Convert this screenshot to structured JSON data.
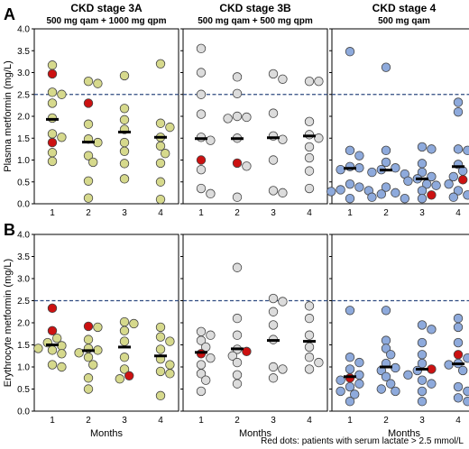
{
  "figure": {
    "row_labels": [
      "A",
      "B"
    ],
    "footnote": "Red dots: patients with serum lactate > 2.5 mmol/L",
    "colors": {
      "3A": "#d6d98c",
      "3B": "#dcdcdc",
      "4": "#8eaadc",
      "highlight": "#cc1111",
      "threshold": "#2e4a80"
    }
  },
  "chart_data": [
    {
      "type": "scatter",
      "row": "A",
      "col": 0,
      "group": "3A",
      "title": "CKD stage 3A",
      "subtitle": "500 mg qam + 1000 mg qpm",
      "ylabel": "Plasma metformin (mg/L)",
      "xlabel": "",
      "ylim": [
        0,
        4.0
      ],
      "yticks": [
        0,
        0.5,
        1.0,
        1.5,
        2.0,
        2.5,
        3.0,
        3.5,
        4.0
      ],
      "categories": [
        "1",
        "2",
        "3",
        "4"
      ],
      "threshold": 2.5,
      "medians": [
        1.93,
        1.41,
        1.64,
        1.52
      ],
      "points": [
        {
          "x": 1,
          "y": 3.17
        },
        {
          "x": 1,
          "y": 2.97,
          "red": true
        },
        {
          "x": 1,
          "y": 2.55
        },
        {
          "x": 1,
          "y": 2.5
        },
        {
          "x": 1,
          "y": 2.3
        },
        {
          "x": 1,
          "y": 1.96
        },
        {
          "x": 1,
          "y": 1.6
        },
        {
          "x": 1,
          "y": 1.4,
          "red": true
        },
        {
          "x": 1,
          "y": 1.17
        },
        {
          "x": 1,
          "y": 0.97
        },
        {
          "x": 1,
          "y": 1.52
        },
        {
          "x": 2,
          "y": 2.8
        },
        {
          "x": 2,
          "y": 2.75
        },
        {
          "x": 2,
          "y": 2.3,
          "red": true
        },
        {
          "x": 2,
          "y": 1.82
        },
        {
          "x": 2,
          "y": 1.48
        },
        {
          "x": 2,
          "y": 1.4
        },
        {
          "x": 2,
          "y": 1.1
        },
        {
          "x": 2,
          "y": 0.95
        },
        {
          "x": 2,
          "y": 0.52
        },
        {
          "x": 2,
          "y": 0.13
        },
        {
          "x": 3,
          "y": 2.93
        },
        {
          "x": 3,
          "y": 2.18
        },
        {
          "x": 3,
          "y": 1.92
        },
        {
          "x": 3,
          "y": 1.7
        },
        {
          "x": 3,
          "y": 1.4
        },
        {
          "x": 3,
          "y": 1.2
        },
        {
          "x": 3,
          "y": 0.92
        },
        {
          "x": 3,
          "y": 0.57
        },
        {
          "x": 4,
          "y": 3.2
        },
        {
          "x": 4,
          "y": 1.84
        },
        {
          "x": 4,
          "y": 1.75
        },
        {
          "x": 4,
          "y": 1.52
        },
        {
          "x": 4,
          "y": 1.32
        },
        {
          "x": 4,
          "y": 1.15
        },
        {
          "x": 4,
          "y": 0.93
        },
        {
          "x": 4,
          "y": 0.5
        },
        {
          "x": 4,
          "y": 0.1
        }
      ]
    },
    {
      "type": "scatter",
      "row": "A",
      "col": 1,
      "group": "3B",
      "title": "CKD stage 3B",
      "subtitle": "500 mg qam + 500 mg qpm",
      "ylabel": "",
      "xlabel": "",
      "ylim": [
        0,
        4.0
      ],
      "yticks": [
        0,
        0.5,
        1.0,
        1.5,
        2.0,
        2.5,
        3.0,
        3.5,
        4.0
      ],
      "categories": [
        "1",
        "2",
        "3",
        "4"
      ],
      "threshold": 2.5,
      "medians": [
        1.49,
        1.49,
        1.51,
        1.55
      ],
      "points": [
        {
          "x": 1,
          "y": 3.55
        },
        {
          "x": 1,
          "y": 3.0
        },
        {
          "x": 1,
          "y": 2.5
        },
        {
          "x": 1,
          "y": 2.05
        },
        {
          "x": 1,
          "y": 1.52
        },
        {
          "x": 1,
          "y": 1.45
        },
        {
          "x": 1,
          "y": 1.0,
          "red": true
        },
        {
          "x": 1,
          "y": 0.78
        },
        {
          "x": 1,
          "y": 0.35
        },
        {
          "x": 1,
          "y": 0.23
        },
        {
          "x": 2,
          "y": 2.9
        },
        {
          "x": 2,
          "y": 2.52
        },
        {
          "x": 2,
          "y": 2.0
        },
        {
          "x": 2,
          "y": 1.98
        },
        {
          "x": 2,
          "y": 1.95
        },
        {
          "x": 2,
          "y": 1.5
        },
        {
          "x": 2,
          "y": 0.93,
          "red": true
        },
        {
          "x": 2,
          "y": 0.86
        },
        {
          "x": 2,
          "y": 0.15
        },
        {
          "x": 3,
          "y": 2.97
        },
        {
          "x": 3,
          "y": 2.85
        },
        {
          "x": 3,
          "y": 2.07
        },
        {
          "x": 3,
          "y": 1.55
        },
        {
          "x": 3,
          "y": 1.47
        },
        {
          "x": 3,
          "y": 1.0
        },
        {
          "x": 3,
          "y": 0.3
        },
        {
          "x": 3,
          "y": 0.25
        },
        {
          "x": 4,
          "y": 2.8
        },
        {
          "x": 4,
          "y": 2.8
        },
        {
          "x": 4,
          "y": 1.88
        },
        {
          "x": 4,
          "y": 1.58
        },
        {
          "x": 4,
          "y": 1.5
        },
        {
          "x": 4,
          "y": 1.3
        },
        {
          "x": 4,
          "y": 1.05
        },
        {
          "x": 4,
          "y": 0.75
        },
        {
          "x": 4,
          "y": 0.35
        }
      ]
    },
    {
      "type": "scatter",
      "row": "A",
      "col": 2,
      "group": "4",
      "title": "CKD stage 4",
      "subtitle": "500 mg qam",
      "ylabel": "",
      "xlabel": "",
      "ylim": [
        0,
        4.0
      ],
      "yticks": [
        0,
        0.5,
        1.0,
        1.5,
        2.0,
        2.5,
        3.0,
        3.5,
        4.0
      ],
      "categories": [
        "1",
        "2",
        "3",
        "4"
      ],
      "threshold": 2.5,
      "medians": [
        0.81,
        0.77,
        0.57,
        0.85
      ],
      "points": [
        {
          "x": 1,
          "y": 3.48
        },
        {
          "x": 1,
          "y": 1.22
        },
        {
          "x": 1,
          "y": 1.1
        },
        {
          "x": 1,
          "y": 0.85
        },
        {
          "x": 1,
          "y": 0.82
        },
        {
          "x": 1,
          "y": 0.78
        },
        {
          "x": 1,
          "y": 0.45
        },
        {
          "x": 1,
          "y": 0.38
        },
        {
          "x": 1,
          "y": 0.32
        },
        {
          "x": 1,
          "y": 0.3
        },
        {
          "x": 1,
          "y": 0.28
        },
        {
          "x": 1,
          "y": 0.12
        },
        {
          "x": 2,
          "y": 3.12
        },
        {
          "x": 2,
          "y": 1.22
        },
        {
          "x": 2,
          "y": 0.95
        },
        {
          "x": 2,
          "y": 0.82
        },
        {
          "x": 2,
          "y": 0.78
        },
        {
          "x": 2,
          "y": 0.72
        },
        {
          "x": 2,
          "y": 0.68
        },
        {
          "x": 2,
          "y": 0.38
        },
        {
          "x": 2,
          "y": 0.25
        },
        {
          "x": 2,
          "y": 0.22
        },
        {
          "x": 2,
          "y": 0.15
        },
        {
          "x": 2,
          "y": 0.12
        },
        {
          "x": 3,
          "y": 1.3
        },
        {
          "x": 3,
          "y": 1.25
        },
        {
          "x": 3,
          "y": 0.92
        },
        {
          "x": 3,
          "y": 0.72
        },
        {
          "x": 3,
          "y": 0.62
        },
        {
          "x": 3,
          "y": 0.57
        },
        {
          "x": 3,
          "y": 0.52
        },
        {
          "x": 3,
          "y": 0.45
        },
        {
          "x": 3,
          "y": 0.42
        },
        {
          "x": 3,
          "y": 0.3
        },
        {
          "x": 3,
          "y": 0.2,
          "red": true
        },
        {
          "x": 3,
          "y": 0.12
        },
        {
          "x": 4,
          "y": 2.32
        },
        {
          "x": 4,
          "y": 2.1
        },
        {
          "x": 4,
          "y": 1.25
        },
        {
          "x": 4,
          "y": 1.22
        },
        {
          "x": 4,
          "y": 0.9
        },
        {
          "x": 4,
          "y": 0.75
        },
        {
          "x": 4,
          "y": 0.62
        },
        {
          "x": 4,
          "y": 0.55,
          "red": true
        },
        {
          "x": 4,
          "y": 0.45
        },
        {
          "x": 4,
          "y": 0.3
        },
        {
          "x": 4,
          "y": 0.2
        },
        {
          "x": 4,
          "y": 0.15
        }
      ]
    },
    {
      "type": "scatter",
      "row": "B",
      "col": 0,
      "group": "3A",
      "title": "",
      "subtitle": "",
      "ylabel": "Erythrocyte metformin (mg/L)",
      "xlabel": "Months",
      "ylim": [
        0,
        4.0
      ],
      "yticks": [
        0,
        0.5,
        1.0,
        1.5,
        2.0,
        2.5,
        3.0,
        3.5,
        4.0
      ],
      "categories": [
        "1",
        "2",
        "3",
        "4"
      ],
      "threshold": 2.5,
      "medians": [
        1.5,
        1.37,
        1.45,
        1.25
      ],
      "points": [
        {
          "x": 1,
          "y": 2.33,
          "red": true
        },
        {
          "x": 1,
          "y": 1.82,
          "red": true
        },
        {
          "x": 1,
          "y": 1.65
        },
        {
          "x": 1,
          "y": 1.55
        },
        {
          "x": 1,
          "y": 1.48
        },
        {
          "x": 1,
          "y": 1.42
        },
        {
          "x": 1,
          "y": 1.38
        },
        {
          "x": 1,
          "y": 1.3
        },
        {
          "x": 1,
          "y": 1.05
        },
        {
          "x": 1,
          "y": 1.0
        },
        {
          "x": 2,
          "y": 1.92,
          "red": true
        },
        {
          "x": 2,
          "y": 1.9
        },
        {
          "x": 2,
          "y": 1.62
        },
        {
          "x": 2,
          "y": 1.42
        },
        {
          "x": 2,
          "y": 1.38
        },
        {
          "x": 2,
          "y": 1.32
        },
        {
          "x": 2,
          "y": 1.22
        },
        {
          "x": 2,
          "y": 1.05
        },
        {
          "x": 2,
          "y": 0.75
        },
        {
          "x": 2,
          "y": 0.5
        },
        {
          "x": 3,
          "y": 2.02
        },
        {
          "x": 3,
          "y": 1.98
        },
        {
          "x": 3,
          "y": 1.82
        },
        {
          "x": 3,
          "y": 1.58
        },
        {
          "x": 3,
          "y": 1.22
        },
        {
          "x": 3,
          "y": 0.95
        },
        {
          "x": 3,
          "y": 0.8,
          "red": true
        },
        {
          "x": 3,
          "y": 0.73
        },
        {
          "x": 4,
          "y": 1.9
        },
        {
          "x": 4,
          "y": 1.68
        },
        {
          "x": 4,
          "y": 1.58
        },
        {
          "x": 4,
          "y": 1.4
        },
        {
          "x": 4,
          "y": 1.18
        },
        {
          "x": 4,
          "y": 1.05
        },
        {
          "x": 4,
          "y": 0.9
        },
        {
          "x": 4,
          "y": 0.85
        },
        {
          "x": 4,
          "y": 0.35
        }
      ]
    },
    {
      "type": "scatter",
      "row": "B",
      "col": 1,
      "group": "3B",
      "title": "",
      "subtitle": "",
      "ylabel": "",
      "xlabel": "Months",
      "ylim": [
        0,
        4.0
      ],
      "yticks": [
        0,
        0.5,
        1.0,
        1.5,
        2.0,
        2.5,
        3.0,
        3.5,
        4.0
      ],
      "categories": [
        "1",
        "2",
        "3",
        "4"
      ],
      "threshold": 2.5,
      "medians": [
        1.33,
        1.41,
        1.6,
        1.58
      ],
      "points": [
        {
          "x": 1,
          "y": 1.8
        },
        {
          "x": 1,
          "y": 1.72
        },
        {
          "x": 1,
          "y": 1.6
        },
        {
          "x": 1,
          "y": 1.45
        },
        {
          "x": 1,
          "y": 1.3,
          "red": true
        },
        {
          "x": 1,
          "y": 1.2
        },
        {
          "x": 1,
          "y": 1.05
        },
        {
          "x": 1,
          "y": 0.85
        },
        {
          "x": 1,
          "y": 0.7
        },
        {
          "x": 1,
          "y": 0.45
        },
        {
          "x": 2,
          "y": 3.25
        },
        {
          "x": 2,
          "y": 2.1
        },
        {
          "x": 2,
          "y": 1.72
        },
        {
          "x": 2,
          "y": 1.4
        },
        {
          "x": 2,
          "y": 1.35,
          "red": true
        },
        {
          "x": 2,
          "y": 1.25
        },
        {
          "x": 2,
          "y": 1.1
        },
        {
          "x": 2,
          "y": 0.82
        },
        {
          "x": 2,
          "y": 0.62
        },
        {
          "x": 3,
          "y": 2.55
        },
        {
          "x": 3,
          "y": 2.48
        },
        {
          "x": 3,
          "y": 2.25
        },
        {
          "x": 3,
          "y": 1.95
        },
        {
          "x": 3,
          "y": 1.62
        },
        {
          "x": 3,
          "y": 1.0
        },
        {
          "x": 3,
          "y": 0.95
        },
        {
          "x": 3,
          "y": 0.75
        },
        {
          "x": 4,
          "y": 2.38
        },
        {
          "x": 4,
          "y": 2.1
        },
        {
          "x": 4,
          "y": 1.72
        },
        {
          "x": 4,
          "y": 1.45
        },
        {
          "x": 4,
          "y": 1.22
        },
        {
          "x": 4,
          "y": 1.1
        },
        {
          "x": 4,
          "y": 0.95
        }
      ]
    },
    {
      "type": "scatter",
      "row": "B",
      "col": 2,
      "group": "4",
      "title": "",
      "subtitle": "",
      "ylabel": "",
      "xlabel": "Months",
      "ylim": [
        0,
        4.0
      ],
      "yticks": [
        0,
        0.5,
        1.0,
        1.5,
        2.0,
        2.5,
        3.0,
        3.5,
        4.0
      ],
      "categories": [
        "1",
        "2",
        "3",
        "4"
      ],
      "threshold": 2.5,
      "medians": [
        0.78,
        1.0,
        0.95,
        1.07
      ],
      "points": [
        {
          "x": 1,
          "y": 2.28
        },
        {
          "x": 1,
          "y": 1.22
        },
        {
          "x": 1,
          "y": 1.1
        },
        {
          "x": 1,
          "y": 0.95
        },
        {
          "x": 1,
          "y": 0.82
        },
        {
          "x": 1,
          "y": 0.75,
          "red": true
        },
        {
          "x": 1,
          "y": 0.7
        },
        {
          "x": 1,
          "y": 0.62
        },
        {
          "x": 1,
          "y": 0.55
        },
        {
          "x": 1,
          "y": 0.45
        },
        {
          "x": 1,
          "y": 0.38
        },
        {
          "x": 1,
          "y": 0.22
        },
        {
          "x": 2,
          "y": 2.28
        },
        {
          "x": 2,
          "y": 1.6
        },
        {
          "x": 2,
          "y": 1.42
        },
        {
          "x": 2,
          "y": 1.28
        },
        {
          "x": 2,
          "y": 1.08
        },
        {
          "x": 2,
          "y": 0.98
        },
        {
          "x": 2,
          "y": 0.92
        },
        {
          "x": 2,
          "y": 0.78
        },
        {
          "x": 2,
          "y": 0.62
        },
        {
          "x": 2,
          "y": 0.5
        },
        {
          "x": 2,
          "y": 0.45
        },
        {
          "x": 3,
          "y": 1.95
        },
        {
          "x": 3,
          "y": 1.85
        },
        {
          "x": 3,
          "y": 1.55
        },
        {
          "x": 3,
          "y": 1.28
        },
        {
          "x": 3,
          "y": 1.08
        },
        {
          "x": 3,
          "y": 0.95,
          "red": true
        },
        {
          "x": 3,
          "y": 0.92
        },
        {
          "x": 3,
          "y": 0.82
        },
        {
          "x": 3,
          "y": 0.7
        },
        {
          "x": 3,
          "y": 0.62
        },
        {
          "x": 3,
          "y": 0.45
        },
        {
          "x": 3,
          "y": 0.22
        },
        {
          "x": 4,
          "y": 2.1
        },
        {
          "x": 4,
          "y": 1.9
        },
        {
          "x": 4,
          "y": 1.55
        },
        {
          "x": 4,
          "y": 1.28,
          "red": true
        },
        {
          "x": 4,
          "y": 1.2
        },
        {
          "x": 4,
          "y": 1.08
        },
        {
          "x": 4,
          "y": 1.05
        },
        {
          "x": 4,
          "y": 0.92
        },
        {
          "x": 4,
          "y": 0.55
        },
        {
          "x": 4,
          "y": 0.45
        },
        {
          "x": 4,
          "y": 0.3
        },
        {
          "x": 4,
          "y": 0.22
        }
      ]
    }
  ]
}
